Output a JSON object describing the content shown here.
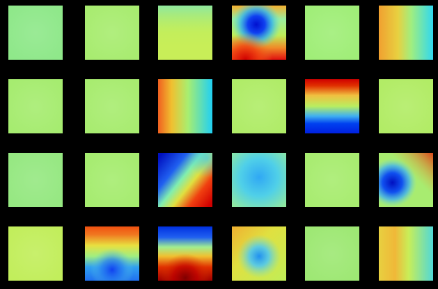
{
  "figure": {
    "background": "#000000",
    "rows": 4,
    "cols": 6,
    "colormap": "jet",
    "tiles": [
      {
        "row": 0,
        "col": 0,
        "name": "filter-r1-c1",
        "base": "#8fe88a",
        "pattern": "uniform"
      },
      {
        "row": 0,
        "col": 1,
        "name": "filter-r1-c2",
        "base": "#a8ec70",
        "pattern": "uniform"
      },
      {
        "row": 0,
        "col": 2,
        "name": "filter-r1-c3",
        "base": "#c8ee58",
        "pattern": "soft-top-cyan"
      },
      {
        "row": 0,
        "col": 3,
        "name": "filter-r1-c4",
        "base": "#9af06e",
        "pattern": "blue-top-red-bottom"
      },
      {
        "row": 0,
        "col": 4,
        "name": "filter-r1-c5",
        "base": "#a0ee78",
        "pattern": "uniform"
      },
      {
        "row": 0,
        "col": 5,
        "name": "filter-r1-c6",
        "base": "#c8ee58",
        "pattern": "orange-left-cyan-right"
      },
      {
        "row": 1,
        "col": 0,
        "name": "filter-r2-c1",
        "base": "#a6ec70",
        "pattern": "uniform"
      },
      {
        "row": 1,
        "col": 1,
        "name": "filter-r2-c2",
        "base": "#a8ec70",
        "pattern": "uniform"
      },
      {
        "row": 1,
        "col": 2,
        "name": "filter-r2-c3",
        "base": "#c8ee58",
        "pattern": "red-left-cyan-right"
      },
      {
        "row": 1,
        "col": 3,
        "name": "filter-r2-c4",
        "base": "#b0ec68",
        "pattern": "uniform"
      },
      {
        "row": 1,
        "col": 4,
        "name": "filter-r2-c5",
        "base": "#d6ee4e",
        "pattern": "red-top-blue-bottom"
      },
      {
        "row": 1,
        "col": 5,
        "name": "filter-r2-c6",
        "base": "#b2ec66",
        "pattern": "uniform"
      },
      {
        "row": 2,
        "col": 0,
        "name": "filter-r3-c1",
        "base": "#96e882",
        "pattern": "uniform"
      },
      {
        "row": 2,
        "col": 1,
        "name": "filter-r3-c2",
        "base": "#a6ec70",
        "pattern": "uniform"
      },
      {
        "row": 2,
        "col": 2,
        "name": "filter-r3-c3",
        "base": "#7de8a4",
        "pattern": "blue-topleft-red-bottomright"
      },
      {
        "row": 2,
        "col": 3,
        "name": "filter-r3-c4",
        "base": "#5ee0c8",
        "pattern": "cyan-center"
      },
      {
        "row": 2,
        "col": 4,
        "name": "filter-r3-c5",
        "base": "#a8ec70",
        "pattern": "uniform"
      },
      {
        "row": 2,
        "col": 5,
        "name": "filter-r3-c6",
        "base": "#a8ec70",
        "pattern": "blue-left-red-topright"
      },
      {
        "row": 3,
        "col": 0,
        "name": "filter-r4-c1",
        "base": "#c2ee5c",
        "pattern": "uniform"
      },
      {
        "row": 3,
        "col": 1,
        "name": "filter-r4-c2",
        "base": "#d6ee4e",
        "pattern": "red-top-blue-bottom-soft"
      },
      {
        "row": 3,
        "col": 2,
        "name": "filter-r4-c3",
        "base": "#d6ee4e",
        "pattern": "blue-top-red-bottom-strong"
      },
      {
        "row": 3,
        "col": 3,
        "name": "filter-r4-c4",
        "base": "#cfee52",
        "pattern": "cyan-center-warm-edges"
      },
      {
        "row": 3,
        "col": 4,
        "name": "filter-r4-c5",
        "base": "#9ee874",
        "pattern": "uniform"
      },
      {
        "row": 3,
        "col": 5,
        "name": "filter-r4-c6",
        "base": "#c8ee58",
        "pattern": "yellow-left-cyan-right"
      }
    ]
  }
}
